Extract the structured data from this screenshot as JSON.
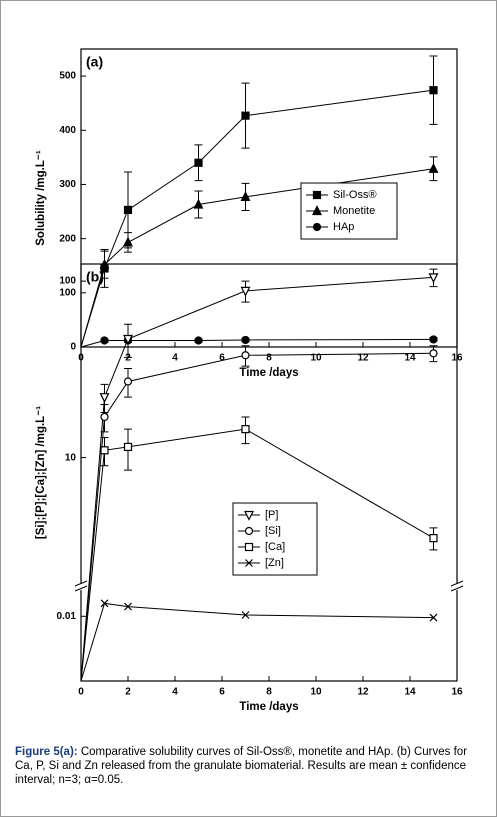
{
  "chart_data": [
    {
      "type": "line",
      "title": "(a)",
      "xlabel": "Time /days",
      "ylabel": "Solubility /mg.L⁻¹",
      "xlim": [
        0,
        16
      ],
      "xticks": [
        0,
        2,
        4,
        6,
        8,
        10,
        12,
        14,
        16
      ],
      "ylim": [
        0,
        550
      ],
      "yticks": [
        0,
        100,
        200,
        300,
        400,
        500
      ],
      "legend": "center right",
      "x": [
        0,
        1,
        2,
        5,
        7,
        15
      ],
      "series": [
        {
          "name": "Sil-Oss®",
          "color": "#000000",
          "marker": "square",
          "values": [
            0,
            145,
            253,
            340,
            427,
            474
          ],
          "errors": [
            null,
            35,
            70,
            33,
            60,
            63
          ]
        },
        {
          "name": "Monetite",
          "color": "#000000",
          "marker": "triangle",
          "values": [
            0,
            152,
            193,
            263,
            277,
            329
          ],
          "errors": [
            null,
            25,
            18,
            25,
            25,
            22
          ]
        },
        {
          "name": "HAp",
          "color": "#000000",
          "marker": "circle",
          "values": [
            0,
            12,
            12,
            12,
            13,
            14
          ],
          "errors": [
            null,
            3,
            3,
            3,
            3,
            3
          ]
        }
      ]
    },
    {
      "type": "line",
      "title": "(b)",
      "xlabel": "Time /days",
      "ylabel": "[Si];[P];[Ca];[Zn] /mg.L⁻¹",
      "xlim": [
        0,
        16
      ],
      "xticks": [
        0,
        2,
        4,
        6,
        8,
        10,
        12,
        14,
        16
      ],
      "log_y": true,
      "ylim": [
        2,
        125
      ],
      "ylim_lower": [
        0,
        0.0136
      ],
      "yticks": [
        0.01,
        10,
        100
      ],
      "legend": "lower center",
      "x": [
        0,
        1,
        2,
        7,
        15
      ],
      "series": [
        {
          "name": "[P]",
          "color": "#000000",
          "marker": "triangle-down-open",
          "values": [
            0,
            22,
            47,
            88,
            105
          ],
          "errors": [
            null,
            4,
            10,
            12,
            12
          ]
        },
        {
          "name": "[Si]",
          "color": "#000000",
          "marker": "circle-open",
          "values": [
            0,
            17,
            27,
            38,
            39
          ],
          "errors": [
            null,
            3,
            5,
            5,
            4
          ]
        },
        {
          "name": "[Ca]",
          "color": "#000000",
          "marker": "square-open",
          "values": [
            0,
            11,
            11.5,
            14.5,
            3.5
          ],
          "errors": [
            null,
            2,
            3,
            2.5,
            0.5
          ]
        },
        {
          "name": "[Zn]",
          "color": "#000000",
          "marker": "x",
          "values": [
            0,
            0.012,
            0.0115,
            0.0102,
            0.0098
          ],
          "errors": [
            null,
            null,
            null,
            null,
            null
          ]
        }
      ]
    }
  ],
  "caption": {
    "label": "Figure 5(a):",
    "text": "Comparative solubility curves of Sil-Oss®, monetite and HAp. (b) Curves for Ca, P, Si and Zn released from the granulate biomaterial. Results are mean ± confidence interval; n=3; α=0.05."
  }
}
